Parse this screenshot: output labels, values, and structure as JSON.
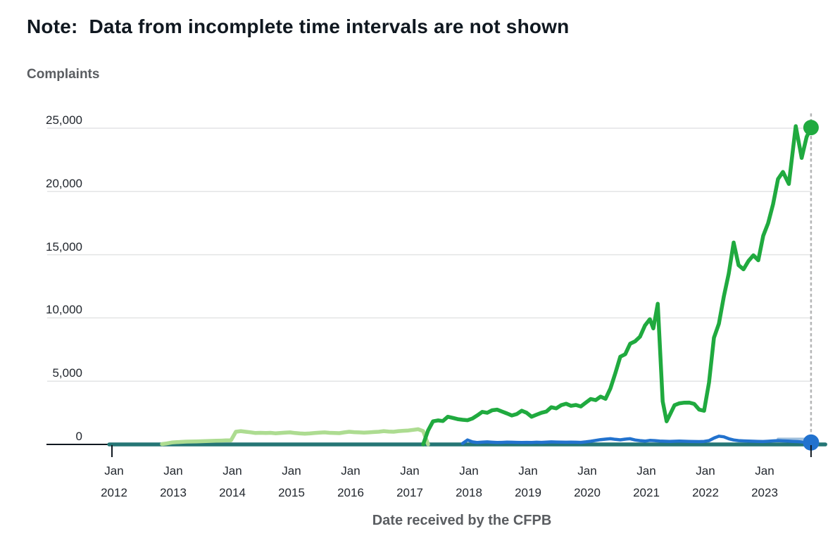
{
  "page": {
    "background": "#ffffff"
  },
  "note_title": "Note:  Data from incomplete time intervals are not shown",
  "colors": {
    "title_text": "#101820",
    "axis_title_text": "#5a5d61",
    "tick_text": "#22272e",
    "gridline": "#e3e4e5",
    "axis_line": "#101820",
    "dashed_marker": "#b4b5b6",
    "green": "#20aa3f",
    "light_green": "#addc91",
    "blue": "#2272ce",
    "light_blue": "#9fbfdc",
    "teal": "#257675"
  },
  "chart_data": {
    "type": "line",
    "title": "Note: Data from incomplete time intervals are not shown",
    "ylabel": "Complaints",
    "xlabel": "Date received by the CFPB",
    "ylim": [
      0,
      25000
    ],
    "grid": true,
    "legend": "none",
    "x_unit": "months since Jan 2012",
    "y_ticks": [
      {
        "label": "25,000",
        "value": 25000
      },
      {
        "label": "20,000",
        "value": 20000
      },
      {
        "label": "15,000",
        "value": 15000
      },
      {
        "label": "10,000",
        "value": 10000
      },
      {
        "label": "5,000",
        "value": 5000
      },
      {
        "label": "0",
        "value": 0
      }
    ],
    "x_ticks": [
      {
        "month": "Jan",
        "year": "2012"
      },
      {
        "month": "Jan",
        "year": "2013"
      },
      {
        "month": "Jan",
        "year": "2014"
      },
      {
        "month": "Jan",
        "year": "2015"
      },
      {
        "month": "Jan",
        "year": "2016"
      },
      {
        "month": "Jan",
        "year": "2017"
      },
      {
        "month": "Jan",
        "year": "2018"
      },
      {
        "month": "Jan",
        "year": "2019"
      },
      {
        "month": "Jan",
        "year": "2020"
      },
      {
        "month": "Jan",
        "year": "2021"
      },
      {
        "month": "Jan",
        "year": "2022"
      },
      {
        "month": "Jan",
        "year": "2023"
      }
    ],
    "end_of_data_marker": {
      "style": "dashed-vertical-line",
      "at_last_point": true
    },
    "series": [
      {
        "name": "teal-line",
        "color_key": "teal",
        "width": 5.5,
        "end_dot": false,
        "points": [
          [
            -0.7,
            0
          ],
          [
            144.6,
            0
          ]
        ]
      },
      {
        "name": "light-green-line",
        "color_key": "light_green",
        "width": 5.5,
        "end_dot": false,
        "points": [
          [
            10,
            30
          ],
          [
            11,
            80
          ],
          [
            12,
            150
          ],
          [
            13,
            180
          ],
          [
            14,
            200
          ],
          [
            15,
            220
          ],
          [
            16,
            230
          ],
          [
            17,
            240
          ],
          [
            18,
            250
          ],
          [
            19,
            260
          ],
          [
            20,
            280
          ],
          [
            21,
            290
          ],
          [
            22,
            300
          ],
          [
            23,
            320
          ],
          [
            24,
            320
          ],
          [
            25,
            1000
          ],
          [
            26,
            1050
          ],
          [
            27,
            1000
          ],
          [
            28,
            960
          ],
          [
            29,
            900
          ],
          [
            30,
            920
          ],
          [
            31,
            900
          ],
          [
            32,
            920
          ],
          [
            33,
            880
          ],
          [
            34,
            900
          ],
          [
            35,
            930
          ],
          [
            36,
            950
          ],
          [
            37,
            900
          ],
          [
            38,
            870
          ],
          [
            39,
            850
          ],
          [
            40,
            870
          ],
          [
            41,
            900
          ],
          [
            42,
            930
          ],
          [
            43,
            950
          ],
          [
            44,
            920
          ],
          [
            45,
            900
          ],
          [
            46,
            890
          ],
          [
            47,
            950
          ],
          [
            48,
            1000
          ],
          [
            49,
            970
          ],
          [
            50,
            950
          ],
          [
            51,
            930
          ],
          [
            52,
            950
          ],
          [
            53,
            980
          ],
          [
            54,
            1000
          ],
          [
            55,
            1050
          ],
          [
            56,
            1020
          ],
          [
            57,
            1000
          ],
          [
            58,
            1050
          ],
          [
            59,
            1080
          ],
          [
            60,
            1100
          ],
          [
            61,
            1150
          ],
          [
            62,
            1200
          ],
          [
            63,
            1050
          ],
          [
            64,
            0
          ]
        ]
      },
      {
        "name": "light-blue-line",
        "color_key": "light_blue",
        "width": 3.5,
        "end_dot": false,
        "points": [
          [
            135,
            440
          ],
          [
            141.7,
            440
          ]
        ]
      },
      {
        "name": "blue-line",
        "color_key": "blue",
        "width": 4.5,
        "end_dot": true,
        "end_dot_r": 11.5,
        "points": [
          [
            71,
            80
          ],
          [
            72,
            350
          ],
          [
            73,
            200
          ],
          [
            74,
            150
          ],
          [
            75,
            180
          ],
          [
            76,
            200
          ],
          [
            77,
            170
          ],
          [
            78,
            150
          ],
          [
            79,
            160
          ],
          [
            80,
            180
          ],
          [
            81,
            170
          ],
          [
            82,
            160
          ],
          [
            83,
            150
          ],
          [
            84,
            160
          ],
          [
            85,
            150
          ],
          [
            86,
            170
          ],
          [
            87,
            160
          ],
          [
            88,
            180
          ],
          [
            89,
            200
          ],
          [
            90,
            190
          ],
          [
            91,
            180
          ],
          [
            92,
            170
          ],
          [
            93,
            180
          ],
          [
            94,
            170
          ],
          [
            95,
            160
          ],
          [
            96,
            200
          ],
          [
            97,
            250
          ],
          [
            98,
            320
          ],
          [
            99,
            380
          ],
          [
            100,
            420
          ],
          [
            101,
            450
          ],
          [
            102,
            400
          ],
          [
            103,
            360
          ],
          [
            104,
            420
          ],
          [
            105,
            450
          ],
          [
            106,
            350
          ],
          [
            107,
            300
          ],
          [
            108,
            260
          ],
          [
            109,
            320
          ],
          [
            110,
            300
          ],
          [
            111,
            270
          ],
          [
            112,
            250
          ],
          [
            113,
            240
          ],
          [
            114,
            250
          ],
          [
            115,
            260
          ],
          [
            116,
            250
          ],
          [
            117,
            240
          ],
          [
            118,
            230
          ],
          [
            119,
            220
          ],
          [
            120,
            240
          ],
          [
            121,
            300
          ],
          [
            122,
            500
          ],
          [
            123,
            650
          ],
          [
            124,
            600
          ],
          [
            125,
            450
          ],
          [
            126,
            350
          ],
          [
            127,
            300
          ],
          [
            128,
            280
          ],
          [
            129,
            260
          ],
          [
            130,
            250
          ],
          [
            131,
            240
          ],
          [
            132,
            230
          ],
          [
            133,
            250
          ],
          [
            134,
            280
          ],
          [
            135,
            300
          ],
          [
            136,
            280
          ],
          [
            137,
            260
          ],
          [
            138,
            240
          ],
          [
            139,
            220
          ],
          [
            140,
            190
          ],
          [
            141.7,
            150
          ]
        ]
      },
      {
        "name": "green-line",
        "color_key": "green",
        "width": 5.5,
        "end_dot": true,
        "end_dot_r": 11,
        "points": [
          [
            63,
            0
          ],
          [
            64,
            1100
          ],
          [
            65,
            1825
          ],
          [
            66,
            1900
          ],
          [
            67,
            1850
          ],
          [
            68,
            2190
          ],
          [
            69,
            2100
          ],
          [
            70,
            2000
          ],
          [
            71,
            1950
          ],
          [
            72,
            1915
          ],
          [
            73,
            2050
          ],
          [
            74,
            2300
          ],
          [
            75,
            2570
          ],
          [
            76,
            2500
          ],
          [
            77,
            2700
          ],
          [
            78,
            2750
          ],
          [
            79,
            2600
          ],
          [
            80,
            2450
          ],
          [
            81,
            2290
          ],
          [
            82,
            2400
          ],
          [
            83,
            2660
          ],
          [
            84,
            2500
          ],
          [
            85,
            2190
          ],
          [
            86,
            2350
          ],
          [
            87,
            2500
          ],
          [
            88,
            2600
          ],
          [
            89,
            2940
          ],
          [
            90,
            2850
          ],
          [
            91,
            3100
          ],
          [
            92,
            3220
          ],
          [
            93,
            3050
          ],
          [
            94,
            3120
          ],
          [
            95,
            3000
          ],
          [
            96,
            3300
          ],
          [
            97,
            3590
          ],
          [
            98,
            3500
          ],
          [
            99,
            3780
          ],
          [
            100,
            3600
          ],
          [
            101,
            4430
          ],
          [
            102,
            5640
          ],
          [
            103,
            6940
          ],
          [
            104,
            7130
          ],
          [
            105,
            7960
          ],
          [
            106,
            8150
          ],
          [
            107,
            8520
          ],
          [
            108,
            9400
          ],
          [
            109,
            9900
          ],
          [
            109.7,
            9170
          ],
          [
            110.6,
            11120
          ],
          [
            111.6,
            3400
          ],
          [
            112.4,
            1825
          ],
          [
            113,
            2300
          ],
          [
            114,
            3100
          ],
          [
            115,
            3250
          ],
          [
            116,
            3300
          ],
          [
            117,
            3310
          ],
          [
            118,
            3200
          ],
          [
            119,
            2750
          ],
          [
            120,
            2660
          ],
          [
            121,
            4890
          ],
          [
            122,
            8430
          ],
          [
            123,
            9540
          ],
          [
            124,
            11680
          ],
          [
            125,
            13500
          ],
          [
            126,
            15960
          ],
          [
            127,
            14170
          ],
          [
            128,
            13840
          ],
          [
            129,
            14500
          ],
          [
            130,
            14950
          ],
          [
            131,
            14560
          ],
          [
            132,
            16500
          ],
          [
            133,
            17500
          ],
          [
            134,
            19000
          ],
          [
            135,
            20980
          ],
          [
            136,
            21540
          ],
          [
            137.2,
            20590
          ],
          [
            138.6,
            25160
          ],
          [
            139.8,
            22650
          ],
          [
            140.8,
            24300
          ],
          [
            141.7,
            25050
          ]
        ]
      }
    ]
  }
}
